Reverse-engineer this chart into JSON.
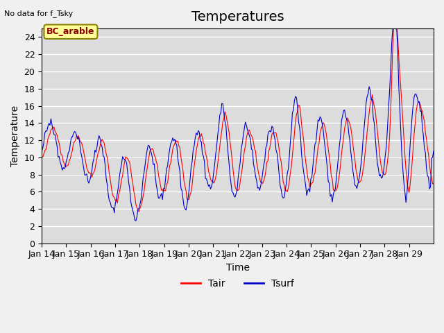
{
  "title": "Temperatures",
  "xlabel": "Time",
  "ylabel": "Temperature",
  "note": "No data for f_Tsky",
  "location_label": "BC_arable",
  "ylim": [
    0,
    25
  ],
  "yticks": [
    0,
    2,
    4,
    6,
    8,
    10,
    12,
    14,
    16,
    18,
    20,
    22,
    24
  ],
  "xtick_labels": [
    "Jan 14",
    "Jan 15",
    "Jan 16",
    "Jan 17",
    "Jan 18",
    "Jan 19",
    "Jan 20",
    "Jan 21",
    "Jan 22",
    "Jan 23",
    "Jan 24",
    "Jan 25",
    "Jan 26",
    "Jan 27",
    "Jan 28",
    "Jan 29"
  ],
  "tair_color": "#ff0000",
  "tsurf_color": "#0000cc",
  "axes_bg_color": "#dcdcdc",
  "grid_color": "#ffffff",
  "title_fontsize": 14,
  "label_fontsize": 10,
  "tick_fontsize": 9,
  "legend_label_tair": "Tair",
  "legend_label_tsurf": "Tsurf"
}
